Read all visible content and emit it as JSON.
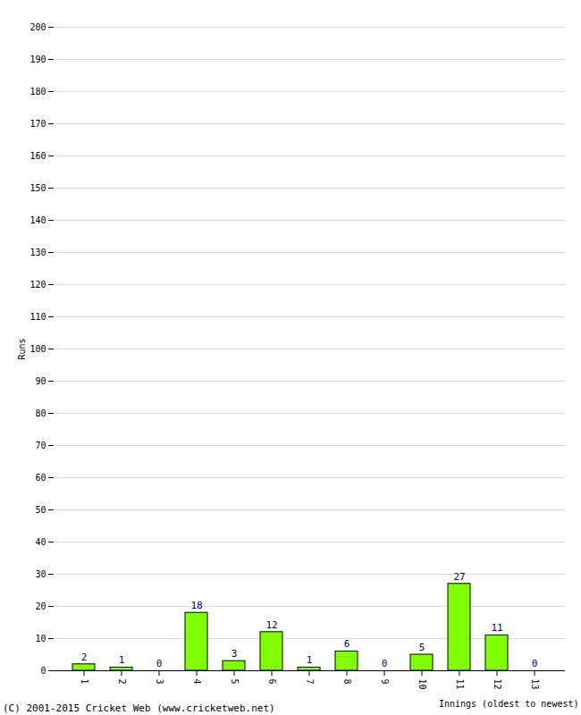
{
  "chart_data": {
    "type": "bar",
    "x_label": "Innings (oldest to newest)",
    "y_label": "Runs",
    "caption": "(C) 2001-2015 Cricket Web (www.cricketweb.net)",
    "categories": [
      1,
      2,
      3,
      4,
      5,
      6,
      7,
      8,
      9,
      10,
      11,
      12,
      13
    ],
    "values": [
      2,
      1,
      0,
      18,
      3,
      12,
      1,
      6,
      0,
      5,
      27,
      11,
      0
    ],
    "color": "#80ff00",
    "ylim": [
      0,
      200
    ],
    "yticks": [
      0,
      10,
      20,
      30,
      40,
      50,
      60,
      70,
      80,
      90,
      100,
      110,
      120,
      130,
      140,
      150,
      160,
      170,
      180,
      190,
      200
    ],
    "grid": true,
    "data_labels": true
  }
}
